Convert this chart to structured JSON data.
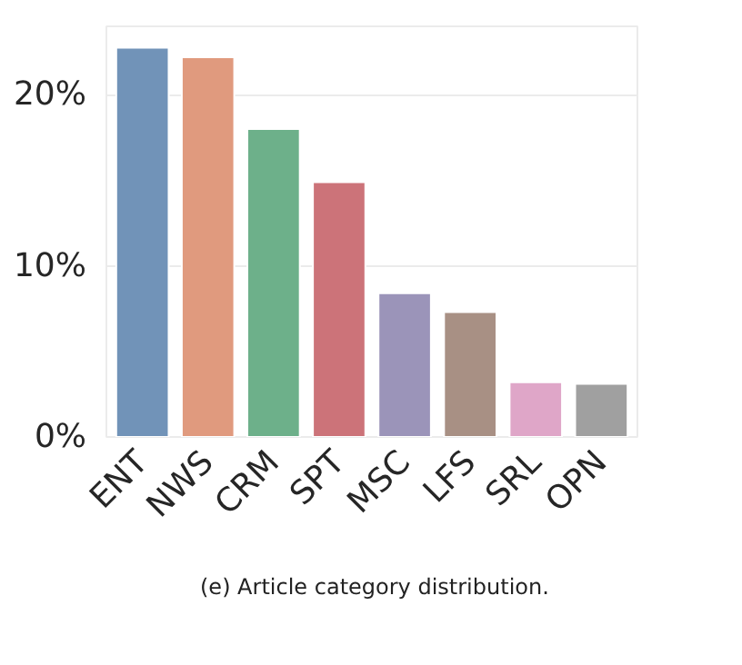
{
  "chart_data": {
    "type": "bar",
    "categories": [
      "ENT",
      "NWS",
      "CRM",
      "SPT",
      "MSC",
      "LFS",
      "SRL",
      "OPN"
    ],
    "values": [
      22.75,
      22.2,
      18.0,
      14.9,
      8.4,
      7.3,
      3.2,
      3.1
    ],
    "colors": [
      "#7193b8",
      "#e09a7e",
      "#6db08a",
      "#cc7379",
      "#9b94b9",
      "#a89084",
      "#dfa6c8",
      "#a0a0a0"
    ],
    "ylim": [
      0,
      24
    ],
    "yticks": [
      {
        "value": 0,
        "label": "0%"
      },
      {
        "value": 10,
        "label": "10%"
      },
      {
        "value": 20,
        "label": "20%"
      }
    ],
    "grid": "y",
    "annotations": [
      "(e) Article category distribution."
    ]
  }
}
